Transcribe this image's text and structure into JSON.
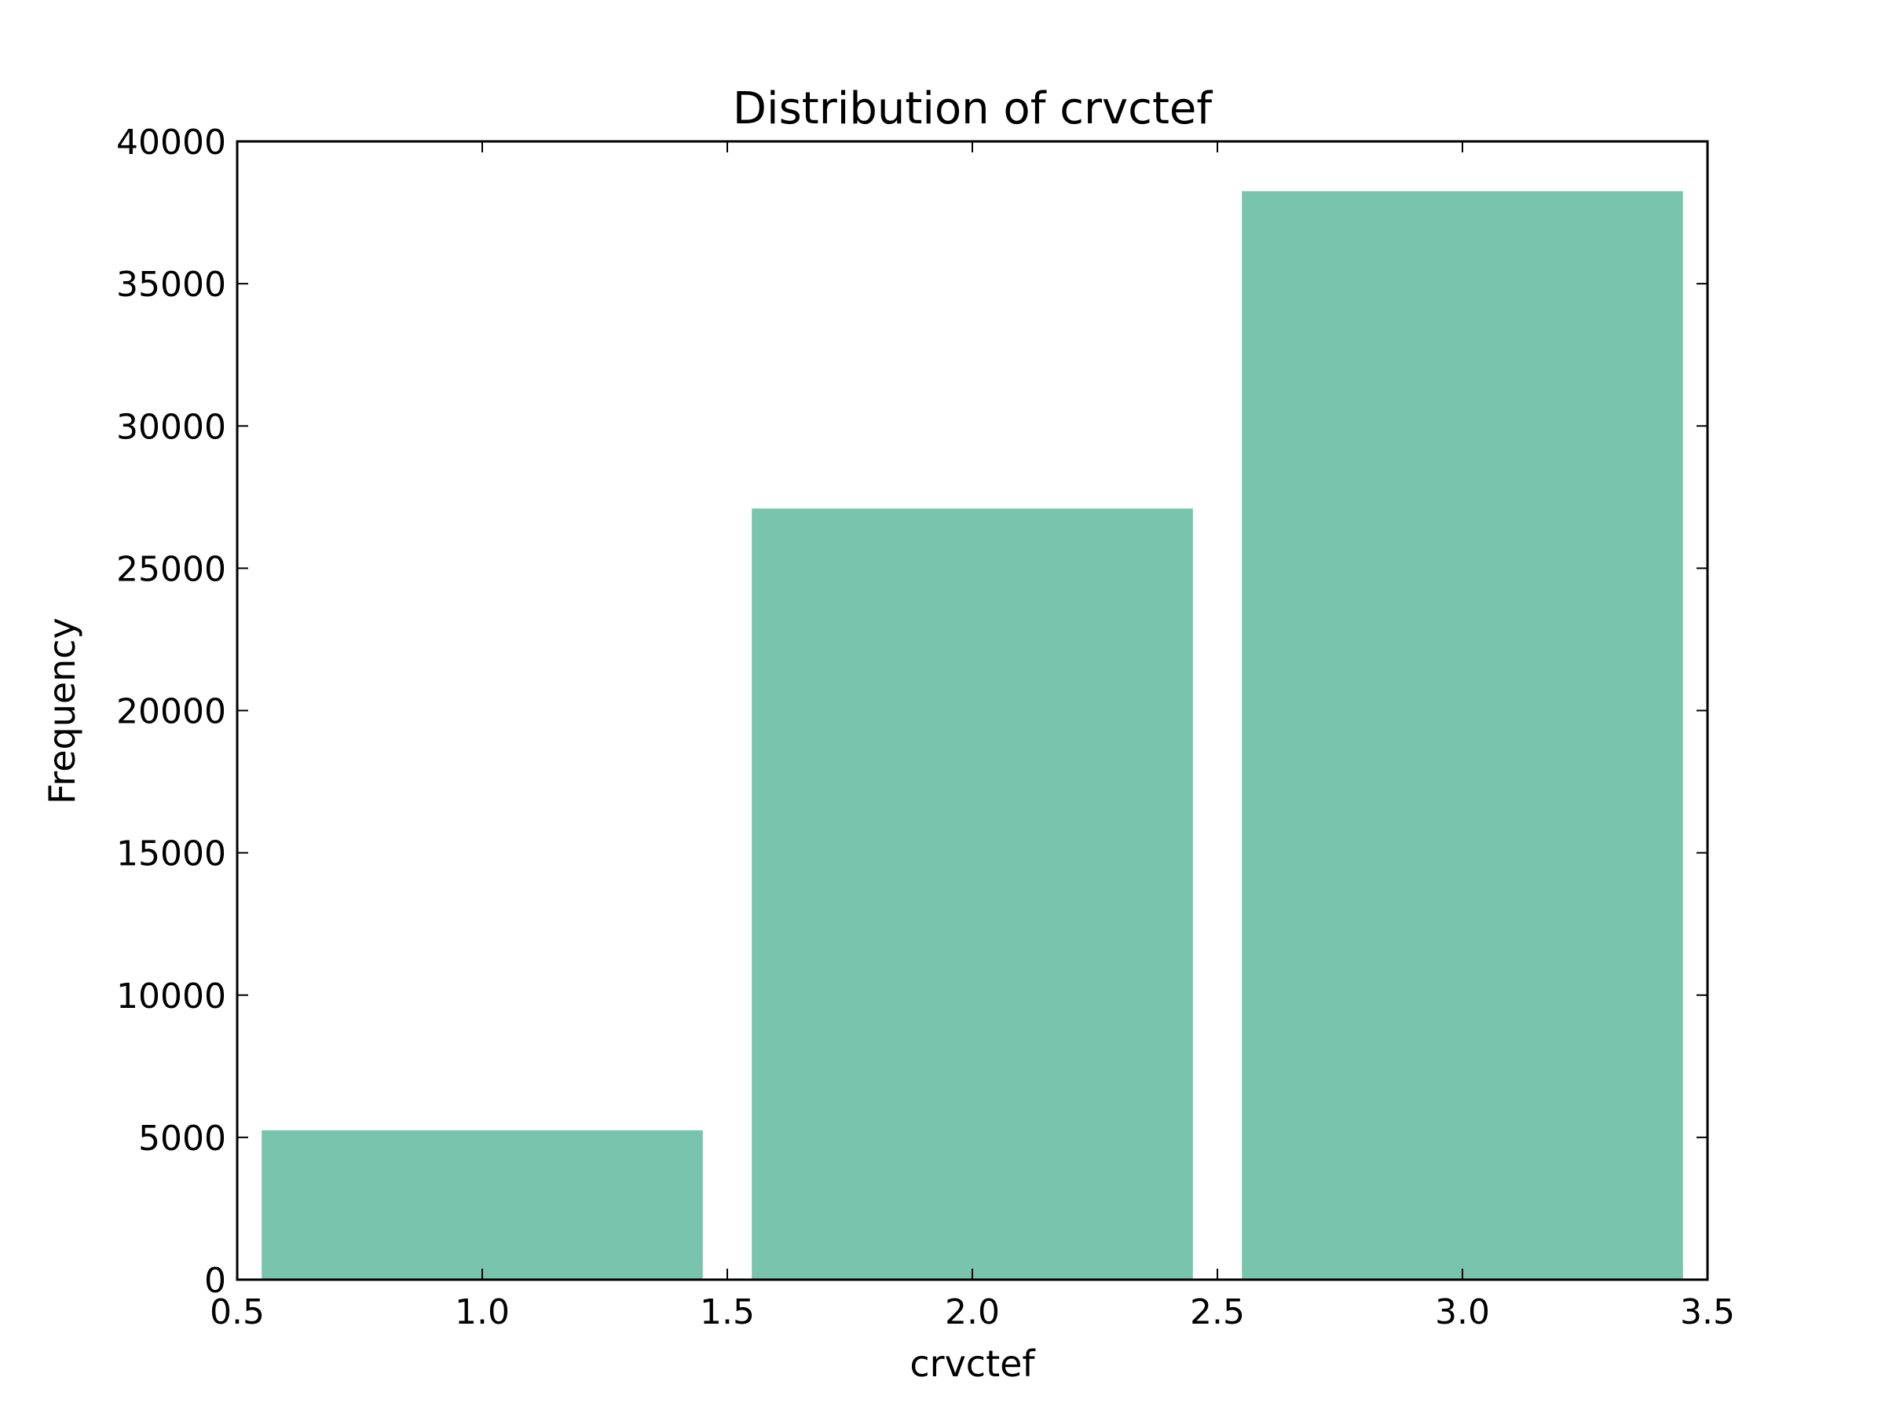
{
  "chart_data": {
    "type": "bar",
    "title": "Distribution of crvctef",
    "xlabel": "crvctef",
    "ylabel": "Frequency",
    "xlim": [
      0.5,
      3.5
    ],
    "ylim": [
      0,
      40000
    ],
    "xticks": [
      "0.5",
      "1.0",
      "1.5",
      "2.0",
      "2.5",
      "3.0",
      "3.5"
    ],
    "yticks": [
      "0",
      "5000",
      "10000",
      "15000",
      "20000",
      "25000",
      "30000",
      "35000",
      "40000"
    ],
    "bars": [
      {
        "x_start": 0.55,
        "x_end": 1.45,
        "value": 5250
      },
      {
        "x_start": 1.55,
        "x_end": 2.45,
        "value": 27100
      },
      {
        "x_start": 2.55,
        "x_end": 3.45,
        "value": 38250
      }
    ],
    "bar_color": "#78c4ad",
    "grid": false,
    "legend": "none"
  }
}
